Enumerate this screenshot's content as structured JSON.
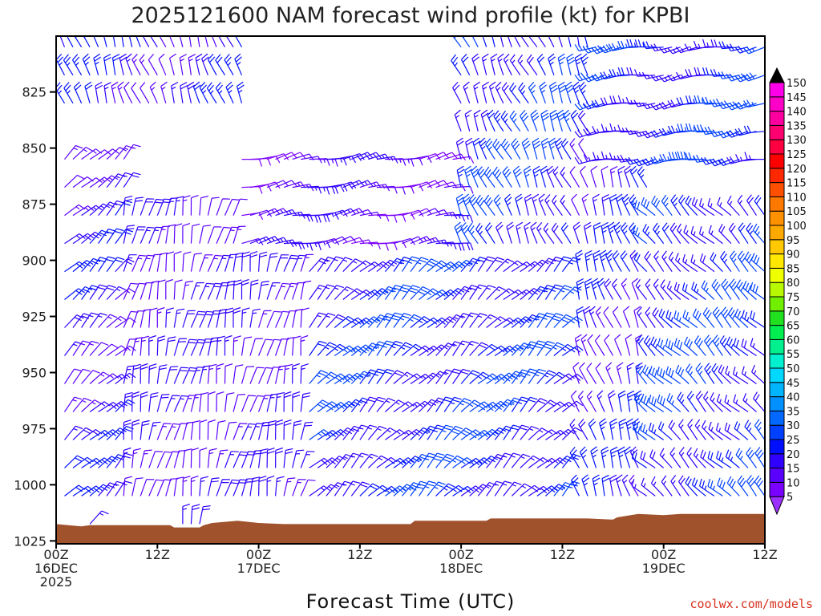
{
  "chart_data": {
    "type": "wind-barb time-height cross section",
    "title": "2025121600 NAM forecast wind profile (kt) for KPBI",
    "xlabel": "Forecast Time (UTC)",
    "ylabel": "",
    "x_range_hours": [
      0,
      84
    ],
    "y_range_hpa": [
      1025,
      800
    ],
    "y_ticks": [
      825,
      850,
      875,
      900,
      925,
      950,
      975,
      1000,
      1025
    ],
    "x_ticks": [
      {
        "hour": 0,
        "lines": [
          "00Z",
          "16DEC",
          "2025"
        ]
      },
      {
        "hour": 12,
        "lines": [
          "12Z"
        ]
      },
      {
        "hour": 24,
        "lines": [
          "00Z",
          "17DEC"
        ]
      },
      {
        "hour": 36,
        "lines": [
          "12Z"
        ]
      },
      {
        "hour": 48,
        "lines": [
          "00Z",
          "18DEC"
        ]
      },
      {
        "hour": 60,
        "lines": [
          "12Z"
        ]
      },
      {
        "hour": 72,
        "lines": [
          "00Z",
          "19DEC"
        ]
      },
      {
        "hour": 84,
        "lines": [
          "12Z"
        ]
      }
    ],
    "colorbar": {
      "units": "kt",
      "levels": [
        5,
        10,
        15,
        20,
        25,
        30,
        35,
        40,
        45,
        50,
        55,
        60,
        65,
        70,
        75,
        80,
        85,
        90,
        95,
        100,
        105,
        110,
        115,
        120,
        125,
        130,
        135,
        140,
        145,
        150
      ],
      "colors": [
        "#7a00ff",
        "#5a00ff",
        "#3000ff",
        "#0010ff",
        "#0040ff",
        "#0068ff",
        "#0090ff",
        "#00b4ff",
        "#00d8ff",
        "#00f0d0",
        "#00f090",
        "#00ee50",
        "#20e020",
        "#70f000",
        "#b8f800",
        "#f0ff00",
        "#ffe800",
        "#ffc800",
        "#ffa800",
        "#ff9000",
        "#ff7800",
        "#ff5000",
        "#ff2800",
        "#ff0000",
        "#ff0040",
        "#ff0070",
        "#ff00a0",
        "#ff00c8",
        "#ff00e8",
        "#ff40ff"
      ]
    },
    "surface_pressure_hpa": [
      {
        "hour": 0,
        "p": 1017.5
      },
      {
        "hour": 3,
        "p": 1018.5
      },
      {
        "hour": 4,
        "p": 1018
      },
      {
        "hour": 13.5,
        "p": 1018
      },
      {
        "hour": 14,
        "p": 1019
      },
      {
        "hour": 17,
        "p": 1019
      },
      {
        "hour": 17.5,
        "p": 1018
      },
      {
        "hour": 18.5,
        "p": 1017
      },
      {
        "hour": 21.5,
        "p": 1016
      },
      {
        "hour": 24,
        "p": 1017
      },
      {
        "hour": 27,
        "p": 1017.5
      },
      {
        "hour": 42,
        "p": 1017.5
      },
      {
        "hour": 42.5,
        "p": 1016
      },
      {
        "hour": 51,
        "p": 1016
      },
      {
        "hour": 51.5,
        "p": 1015
      },
      {
        "hour": 63,
        "p": 1015
      },
      {
        "hour": 66,
        "p": 1015.5
      },
      {
        "hour": 66.5,
        "p": 1014.5
      },
      {
        "hour": 69,
        "p": 1013
      },
      {
        "hour": 72,
        "p": 1013.5
      },
      {
        "hour": 74,
        "p": 1013
      },
      {
        "hour": 84,
        "p": 1013
      }
    ],
    "wind_field_summary": [
      {
        "period_hours": [
          0,
          8
        ],
        "below_hpa": 850,
        "direction": "NE",
        "speed_kt": [
          12,
          22
        ]
      },
      {
        "period_hours": [
          0,
          22
        ],
        "above_hpa": 840,
        "direction": "N-NW",
        "speed_kt": [
          12,
          25
        ]
      },
      {
        "period_hours": [
          8,
          30
        ],
        "below_hpa": 880,
        "direction": "N-NNE",
        "speed_kt": [
          10,
          20
        ]
      },
      {
        "period_hours": [
          22,
          50
        ],
        "layer_hpa": [
          850,
          895
        ],
        "direction": "E-ENE",
        "speed_kt": [
          8,
          18
        ]
      },
      {
        "period_hours": [
          30,
          60
        ],
        "below_hpa": 900,
        "direction": "NE",
        "speed_kt": [
          15,
          28
        ]
      },
      {
        "period_hours": [
          48,
          62
        ],
        "above_hpa": 900,
        "direction": "NW-N",
        "speed_kt": [
          15,
          30
        ]
      },
      {
        "period_hours": [
          62,
          70
        ],
        "all_levels": true,
        "direction": "N-NW",
        "speed_kt": [
          10,
          25
        ]
      },
      {
        "period_hours": [
          70,
          84
        ],
        "below_hpa": 870,
        "direction": "NW",
        "speed_kt": [
          15,
          30
        ]
      },
      {
        "period_hours": [
          64,
          84
        ],
        "above_hpa": 860,
        "direction": "W-WSW",
        "speed_kt": [
          15,
          28
        ]
      }
    ]
  },
  "credit": "coolwx.com/models"
}
